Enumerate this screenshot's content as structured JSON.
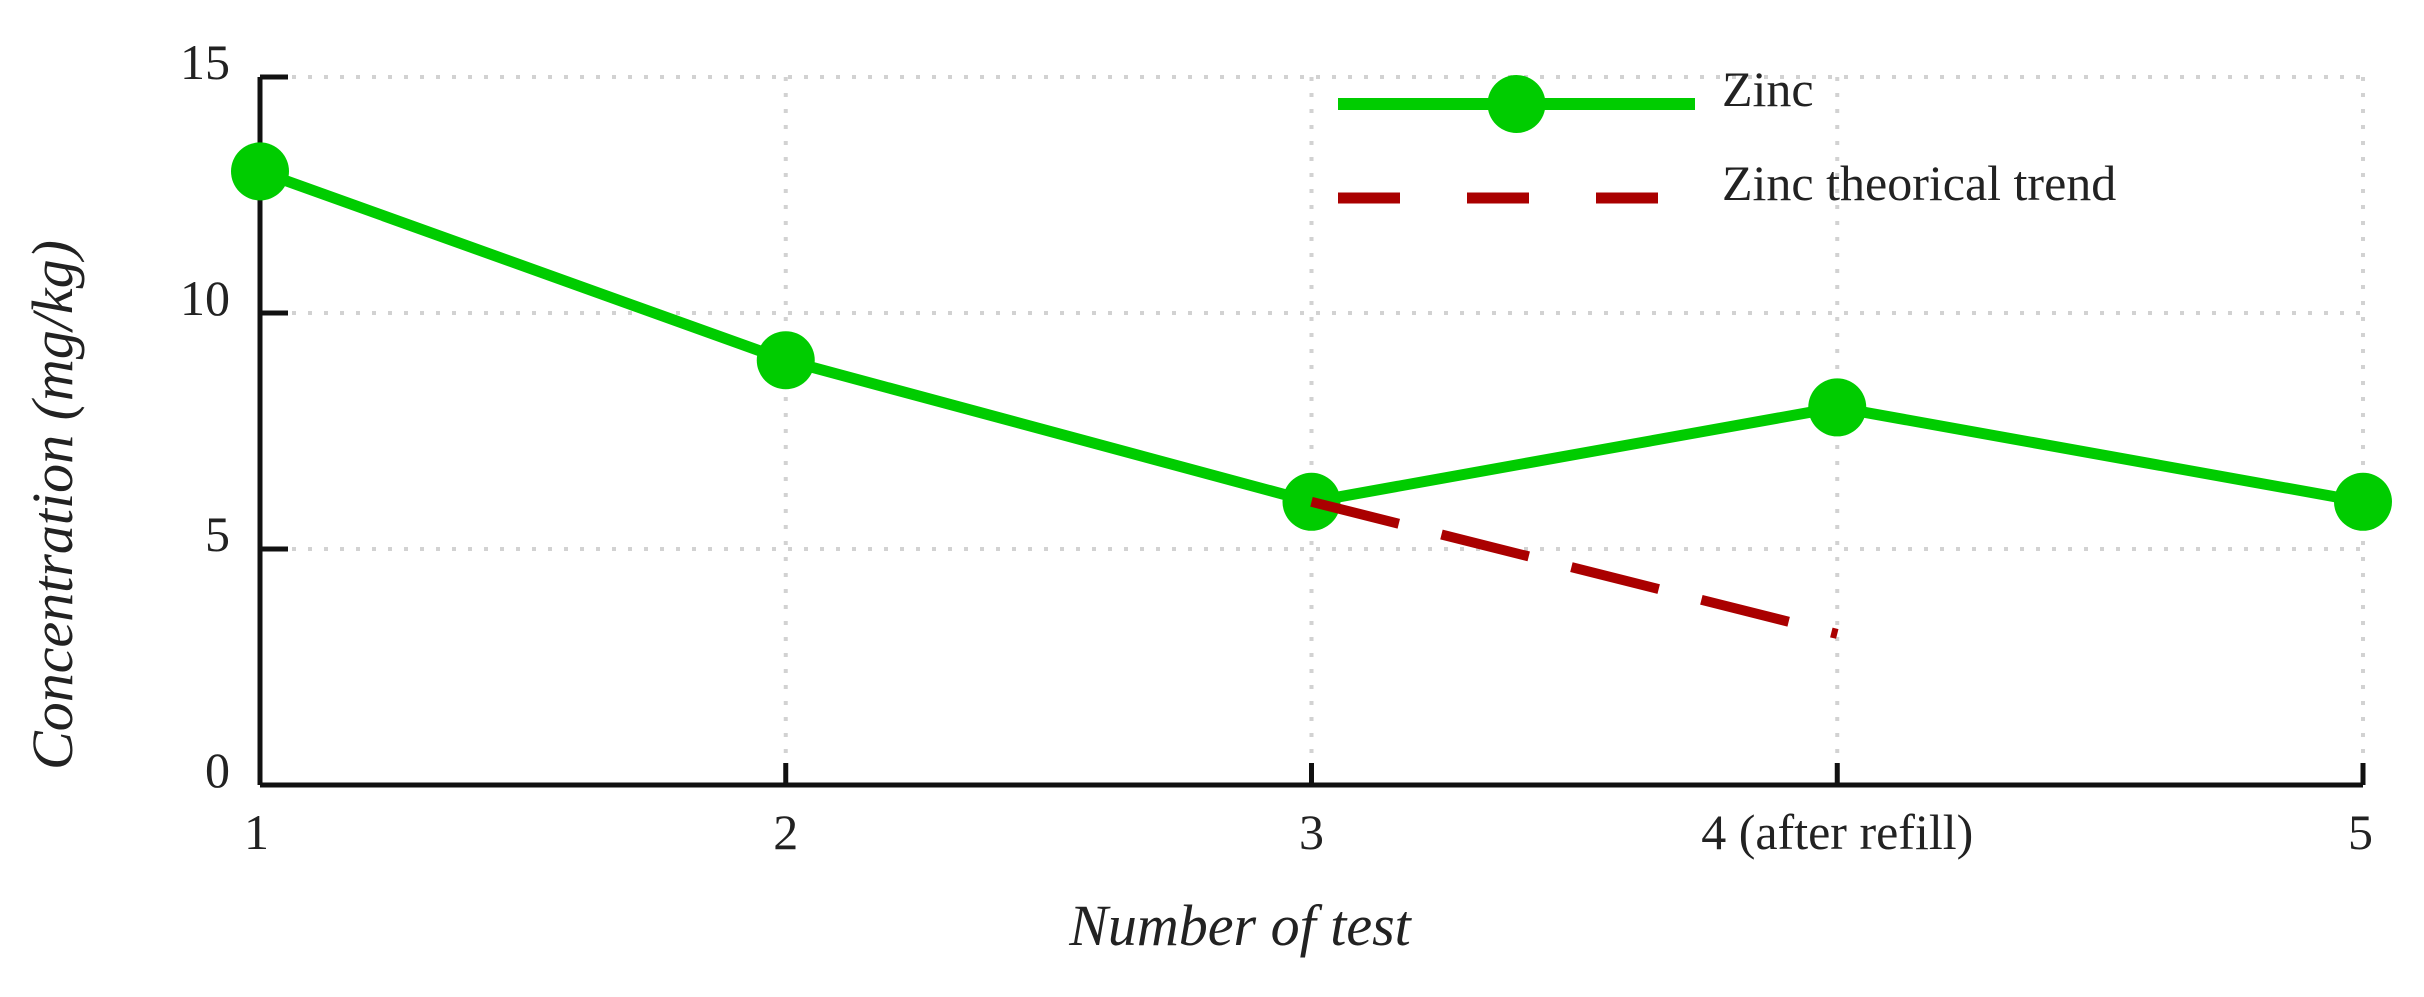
{
  "chart_data": {
    "type": "line",
    "xlabel": "Number of test",
    "ylabel": "Concentration (mg/kg)",
    "categories": [
      "1",
      "2",
      "3",
      "4 (after refill)",
      "5"
    ],
    "ylim": [
      0,
      15
    ],
    "yticks": [
      0,
      5,
      10,
      15
    ],
    "grid": true,
    "legend_position": "top-right",
    "series": [
      {
        "name": "Zinc",
        "style": "solid",
        "marker": "circle",
        "color": "#00cc00",
        "x": [
          1,
          2,
          3,
          4,
          5
        ],
        "values": [
          13,
          9,
          6,
          8,
          6
        ]
      },
      {
        "name": "Zinc theorical trend",
        "style": "dashed",
        "marker": "none",
        "color": "#aa0000",
        "x": [
          3,
          4
        ],
        "values": [
          6,
          3.2
        ]
      }
    ]
  }
}
